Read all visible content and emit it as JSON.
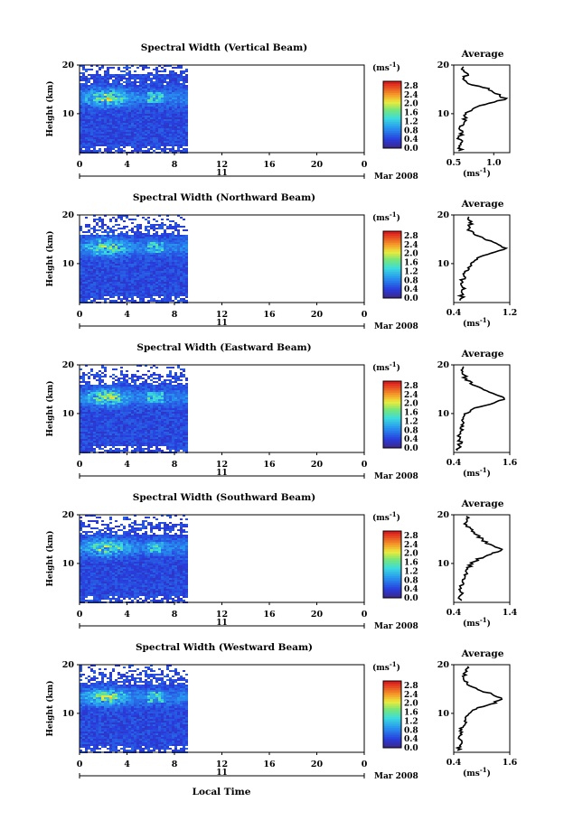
{
  "figure": {
    "xlabel": "Local Time",
    "panels": [
      {
        "title": "Spectral Width (Vertical Beam)",
        "average_ticks": [
          "0.5",
          "1.0"
        ],
        "average_xlim": [
          0.5,
          1.2
        ]
      },
      {
        "title": "Spectral Width (Northward Beam)",
        "average_ticks": [
          "0.4",
          "1.2"
        ],
        "average_xlim": [
          0.4,
          1.2
        ]
      },
      {
        "title": "Spectral Width (Eastward Beam)",
        "average_ticks": [
          "0.4",
          "1.6"
        ],
        "average_xlim": [
          0.4,
          1.6
        ]
      },
      {
        "title": "Spectral Width (Southward Beam)",
        "average_ticks": [
          "0.4",
          "1.4"
        ],
        "average_xlim": [
          0.4,
          1.4
        ]
      },
      {
        "title": "Spectral Width (Westward Beam)",
        "average_ticks": [
          "0.4",
          "1.6"
        ],
        "average_xlim": [
          0.4,
          1.6
        ]
      }
    ]
  },
  "chart_data": {
    "type": "heatmap",
    "ylabel": "Height (km)",
    "ylim": [
      2,
      20
    ],
    "yticks": [
      "10",
      "20"
    ],
    "xlim": [
      0,
      24
    ],
    "xticks": [
      "0",
      "4",
      "8",
      "12",
      "16",
      "20",
      "0"
    ],
    "data_extent_hours": [
      0,
      9
    ],
    "date_label": "Mar 2008",
    "day_label": "11",
    "colorbar": {
      "unit_base": "(ms",
      "unit_exp": "-1",
      "unit_close": ")",
      "ticks": [
        "2.8",
        "2.4",
        "2.0",
        "1.6",
        "1.2",
        "0.8",
        "0.4",
        "0.0"
      ],
      "range": [
        0.0,
        3.0
      ]
    },
    "average": {
      "title": "Average",
      "ylim": [
        2,
        20
      ],
      "yticks": [
        "10",
        "20"
      ],
      "unit_base": "(ms",
      "unit_exp": "-1",
      "unit_close": ")"
    },
    "series_profiles": [
      {
        "beam": "Vertical",
        "height_km": [
          3,
          4,
          5,
          6,
          7,
          8,
          9,
          10,
          11,
          12,
          13,
          14,
          15,
          16,
          17,
          18,
          19
        ],
        "width_ms": [
          0.58,
          0.6,
          0.57,
          0.6,
          0.58,
          0.62,
          0.64,
          0.66,
          0.72,
          0.88,
          1.15,
          1.05,
          0.95,
          0.72,
          0.62,
          0.66,
          0.62
        ]
      },
      {
        "beam": "Northward",
        "height_km": [
          3,
          4,
          5,
          6,
          7,
          8,
          9,
          10,
          11,
          12,
          13,
          14,
          15,
          16,
          17,
          18,
          19
        ],
        "width_ms": [
          0.52,
          0.5,
          0.55,
          0.5,
          0.54,
          0.56,
          0.6,
          0.64,
          0.72,
          0.9,
          1.14,
          1.0,
          0.86,
          0.72,
          0.6,
          0.64,
          0.62
        ]
      },
      {
        "beam": "Eastward",
        "height_km": [
          3,
          4,
          5,
          6,
          7,
          8,
          9,
          10,
          11,
          12,
          13,
          14,
          15,
          16,
          17,
          18,
          19
        ],
        "width_ms": [
          0.5,
          0.55,
          0.5,
          0.56,
          0.55,
          0.58,
          0.62,
          0.66,
          0.82,
          1.25,
          1.5,
          1.28,
          1.0,
          0.8,
          0.66,
          0.62,
          0.6
        ]
      },
      {
        "beam": "Southward",
        "height_km": [
          3,
          4,
          5,
          6,
          7,
          8,
          9,
          10,
          11,
          12,
          13,
          14,
          15,
          16,
          17,
          18,
          19
        ],
        "width_ms": [
          0.52,
          0.55,
          0.5,
          0.56,
          0.58,
          0.62,
          0.66,
          0.72,
          0.86,
          1.1,
          1.28,
          1.02,
          0.9,
          0.78,
          0.7,
          0.62,
          0.66
        ]
      },
      {
        "beam": "Westward",
        "height_km": [
          3,
          4,
          5,
          6,
          7,
          8,
          9,
          10,
          11,
          12,
          13,
          14,
          15,
          16,
          17,
          18,
          19
        ],
        "width_ms": [
          0.52,
          0.56,
          0.5,
          0.56,
          0.58,
          0.62,
          0.66,
          0.74,
          0.9,
          1.24,
          1.42,
          1.2,
          0.9,
          0.72,
          0.64,
          0.62,
          0.7
        ]
      }
    ]
  }
}
